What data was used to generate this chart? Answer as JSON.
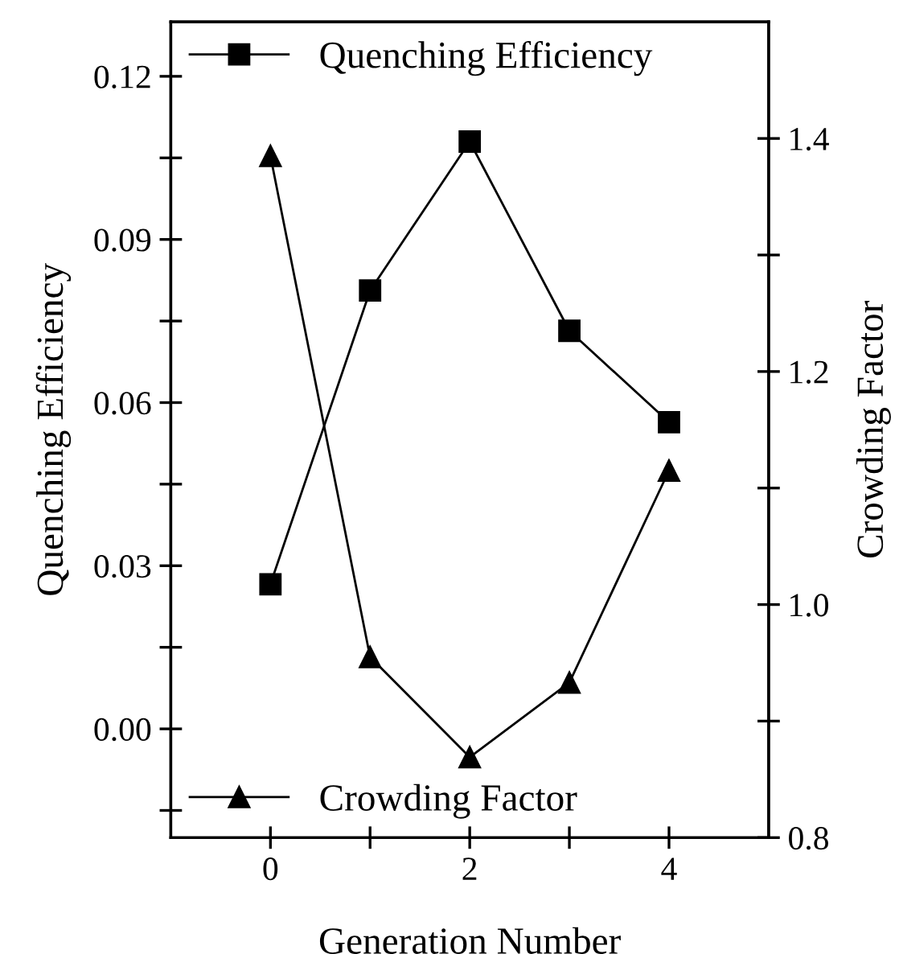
{
  "chart_data": {
    "type": "line",
    "xlabel": "Generation Number",
    "ylabel": "Quenching Efficiency",
    "y2label": "Crowding Factor",
    "x": [
      0,
      1,
      2,
      3,
      4
    ],
    "series": [
      {
        "name": "Quenching Efficiency",
        "color": "#000000",
        "marker": "square",
        "values": [
          0.0266,
          0.0806,
          0.108,
          0.0732,
          0.0564
        ]
      },
      {
        "name": "Crowding Factor",
        "color": "#000000",
        "marker": "triangle",
        "axis": "y2",
        "values": [
          1.385,
          0.955,
          0.869,
          0.933,
          1.115
        ]
      }
    ],
    "xlim": [
      -1,
      5
    ],
    "xticks": [
      0,
      {
        "value": 1,
        "label": null
      },
      2,
      {
        "value": 3,
        "label": null
      },
      4
    ],
    "ylim": [
      -0.02,
      0.13
    ],
    "yticks": [
      {
        "value": -0.015,
        "label": null
      },
      {
        "value": 0,
        "label": "0.00"
      },
      {
        "value": 0.015,
        "label": null
      },
      {
        "value": 0.03,
        "label": "0.03"
      },
      {
        "value": 0.045,
        "label": null
      },
      {
        "value": 0.06,
        "label": "0.06"
      },
      {
        "value": 0.075,
        "label": null
      },
      {
        "value": 0.09,
        "label": "0.09"
      },
      {
        "value": 0.105,
        "label": null
      },
      {
        "value": 0.12,
        "label": "0.12"
      }
    ],
    "y2lim": [
      0.8,
      1.5
    ],
    "y2ticks": [
      0.8,
      {
        "value": 0.9,
        "label": null
      },
      {
        "value": 1.0,
        "label": "1.0"
      },
      {
        "value": 1.1,
        "label": null
      },
      1.2,
      {
        "value": 1.3,
        "label": null
      },
      1.4
    ],
    "line_style": "solid",
    "grid": false,
    "legend": "left"
  }
}
